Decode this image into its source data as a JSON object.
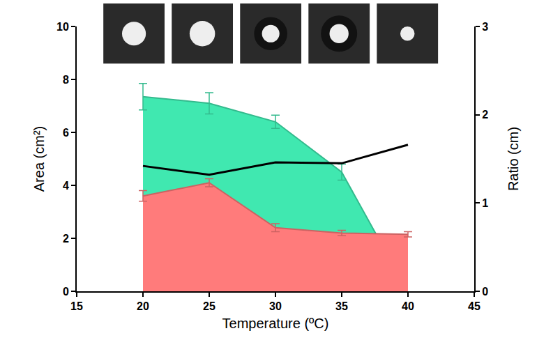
{
  "chart_data": {
    "type": "area",
    "x_label": "Temperature (ºC)",
    "y_label": "Area (cm²)",
    "y2_label": "Ratio (cm)",
    "xlim": [
      15,
      45
    ],
    "xticks": [
      15,
      20,
      25,
      30,
      35,
      40,
      45
    ],
    "ylim": [
      0,
      10
    ],
    "yticks": [
      0,
      2,
      4,
      6,
      8,
      10
    ],
    "y2lim": [
      0,
      3
    ],
    "y2ticks": [
      0,
      1,
      2,
      3
    ],
    "grid": false,
    "series": [
      {
        "type": "area",
        "color": "#40e8b0",
        "x": [
          20,
          25,
          30,
          35,
          37.6
        ],
        "values": [
          7.35,
          7.1,
          6.4,
          4.5,
          2.15
        ],
        "errors": [
          0.5,
          0.4,
          0.25,
          0.3,
          null
        ]
      },
      {
        "type": "area",
        "color": "#ff7b7b",
        "x": [
          20,
          25,
          30,
          35,
          40
        ],
        "values": [
          3.6,
          4.1,
          2.4,
          2.2,
          2.15
        ],
        "errors": [
          0.2,
          0.15,
          0.15,
          0.1,
          0.1
        ]
      },
      {
        "type": "line",
        "color": "#000000",
        "axis": "y2",
        "x": [
          20,
          25,
          30,
          35,
          40
        ],
        "values": [
          1.42,
          1.32,
          1.46,
          1.45,
          1.66
        ]
      }
    ]
  }
}
